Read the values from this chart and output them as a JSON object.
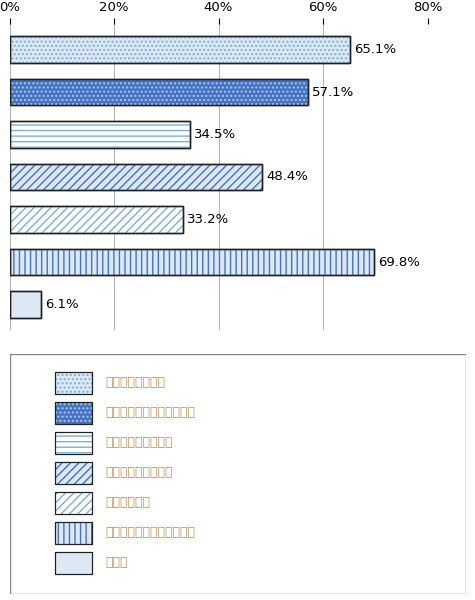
{
  "categories": [
    "十分な休養や睡眠",
    "栄養バランスの取れた食事",
    "酒やタバコを控える",
    "定期的に体を動かす",
    "友人等と話す",
    "健康診断等の定期的な受診",
    "その他"
  ],
  "values": [
    65.1,
    57.1,
    34.5,
    48.4,
    33.2,
    69.8,
    6.1
  ],
  "bar_facecolors": [
    "#dce9f5",
    "#4472c4",
    "#ffffff",
    "#dce9f5",
    "#ffffff",
    "#dce9f5",
    "#dce9f5"
  ],
  "bar_edgecolors": [
    "#1f1f1f",
    "#1f1f1f",
    "#1f1f1f",
    "#1f1f1f",
    "#1f1f1f",
    "#1f1f1f",
    "#1f1f1f"
  ],
  "bar_hatch_colors": [
    "#7bafd4",
    "#aec8e8",
    "#7bafd4",
    "#4472c4",
    "#7bafd4",
    "#4472c4",
    "#7bafd4"
  ],
  "bar_hatches": [
    "....",
    "....",
    "---",
    "////",
    "////",
    "|||",
    "~~~~"
  ],
  "value_labels": [
    "65.1%",
    "57.1%",
    "34.5%",
    "48.4%",
    "33.2%",
    "69.8%",
    "6.1%"
  ],
  "xlim": [
    0,
    80
  ],
  "xticks": [
    0,
    20,
    40,
    60,
    80
  ],
  "xticklabels": [
    "0%",
    "20%",
    "40%",
    "60%",
    "80%"
  ],
  "legend_labels": [
    "十分な休養や睡眠",
    "栄養バランスの取れた食事",
    "酒やタバコを控える",
    "定期的に体を動かす",
    "友人等と話す",
    "健康診断等の定期的な受診",
    "その他"
  ],
  "legend_facecolors": [
    "#dce9f5",
    "#4472c4",
    "#ffffff",
    "#dce9f5",
    "#ffffff",
    "#dce9f5",
    "#dce9f5"
  ],
  "legend_edgecolors": [
    "#1f1f1f",
    "#1f1f1f",
    "#1f1f1f",
    "#1f1f1f",
    "#1f1f1f",
    "#1f1f1f",
    "#1f1f1f"
  ],
  "legend_hatch_colors": [
    "#7bafd4",
    "#aec8e8",
    "#7bafd4",
    "#4472c4",
    "#7bafd4",
    "#4472c4",
    "#7bafd4"
  ],
  "legend_hatches": [
    "....",
    "....",
    "---",
    "////",
    "////",
    "|||",
    "~~~~"
  ],
  "text_color": "#c0935a",
  "bar_height": 0.62,
  "figsize": [
    4.75,
    6.0
  ],
  "dpi": 100,
  "chart_ratio": 0.55,
  "legend_ratio": 0.4
}
